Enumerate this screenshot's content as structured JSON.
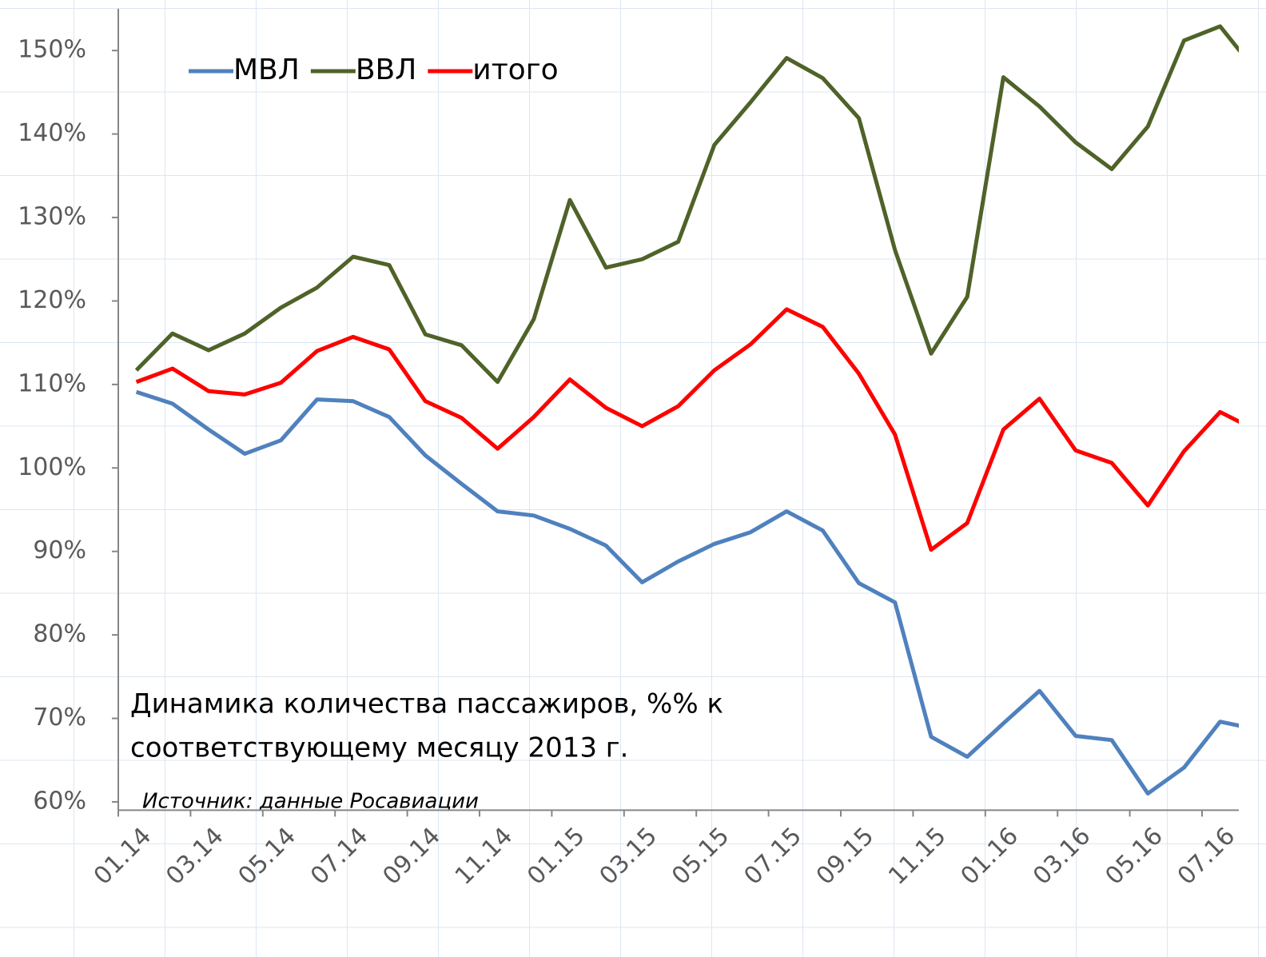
{
  "chart_data": {
    "type": "line",
    "annotations": [
      "Динамика количества пассажиров,  %% к",
      "соответствующему месяцу 2013 г."
    ],
    "source": "Источник: данные Росавиации",
    "categories": [
      "01.14",
      null,
      "03.14",
      null,
      "05.14",
      null,
      "07.14",
      null,
      "09.14",
      null,
      "11.14",
      null,
      "01.15",
      null,
      "03.15",
      null,
      "05.15",
      null,
      "07.15",
      null,
      "09.15",
      null,
      "11.15",
      null,
      "01.16",
      null,
      "03.16",
      null,
      "05.16",
      null,
      "07.16",
      null
    ],
    "series": [
      {
        "name": "МВЛ",
        "color": "#4f81bd",
        "values": [
          109.1,
          107.7,
          104.6,
          101.7,
          103.3,
          108.2,
          108.0,
          106.1,
          101.5,
          98.1,
          94.8,
          94.3,
          92.7,
          90.7,
          86.3,
          88.8,
          90.9,
          92.3,
          94.8,
          92.5,
          86.2,
          83.9,
          67.8,
          65.4,
          69.4,
          73.3,
          67.9,
          67.4,
          61.0,
          64.1,
          69.6,
          68.7
        ]
      },
      {
        "name": "ВВЛ",
        "color": "#4f6228",
        "values": [
          111.7,
          116.1,
          114.1,
          116.1,
          119.2,
          121.6,
          125.3,
          124.3,
          116.0,
          114.7,
          110.3,
          117.8,
          132.1,
          124.0,
          125.0,
          127.1,
          138.7,
          143.8,
          149.1,
          146.7,
          141.9,
          126.1,
          113.7,
          120.5,
          146.8,
          143.3,
          139.0,
          135.8,
          140.9,
          151.2,
          152.9,
          147.5
        ]
      },
      {
        "name": "итого",
        "color": "#ff0000",
        "values": [
          110.3,
          111.9,
          109.2,
          108.8,
          110.2,
          114.0,
          115.7,
          114.2,
          108.0,
          106.0,
          102.3,
          106.1,
          110.6,
          107.2,
          105.0,
          107.4,
          111.7,
          114.8,
          119.0,
          116.9,
          111.3,
          104.0,
          90.2,
          93.4,
          104.6,
          108.3,
          102.1,
          100.6,
          95.5,
          102.0,
          106.7,
          104.5
        ]
      }
    ],
    "ylim": [
      59,
      155
    ],
    "yticks": [
      {
        "value": 60,
        "label": "60%"
      },
      {
        "value": 70,
        "label": "70%"
      },
      {
        "value": 80,
        "label": "80%"
      },
      {
        "value": 90,
        "label": "90%"
      },
      {
        "value": 100,
        "label": "100%"
      },
      {
        "value": 110,
        "label": "110%"
      },
      {
        "value": 120,
        "label": "120%"
      },
      {
        "value": 130,
        "label": "130%"
      },
      {
        "value": 140,
        "label": "140%"
      },
      {
        "value": 150,
        "label": "150%"
      }
    ],
    "legend": "top-left"
  }
}
